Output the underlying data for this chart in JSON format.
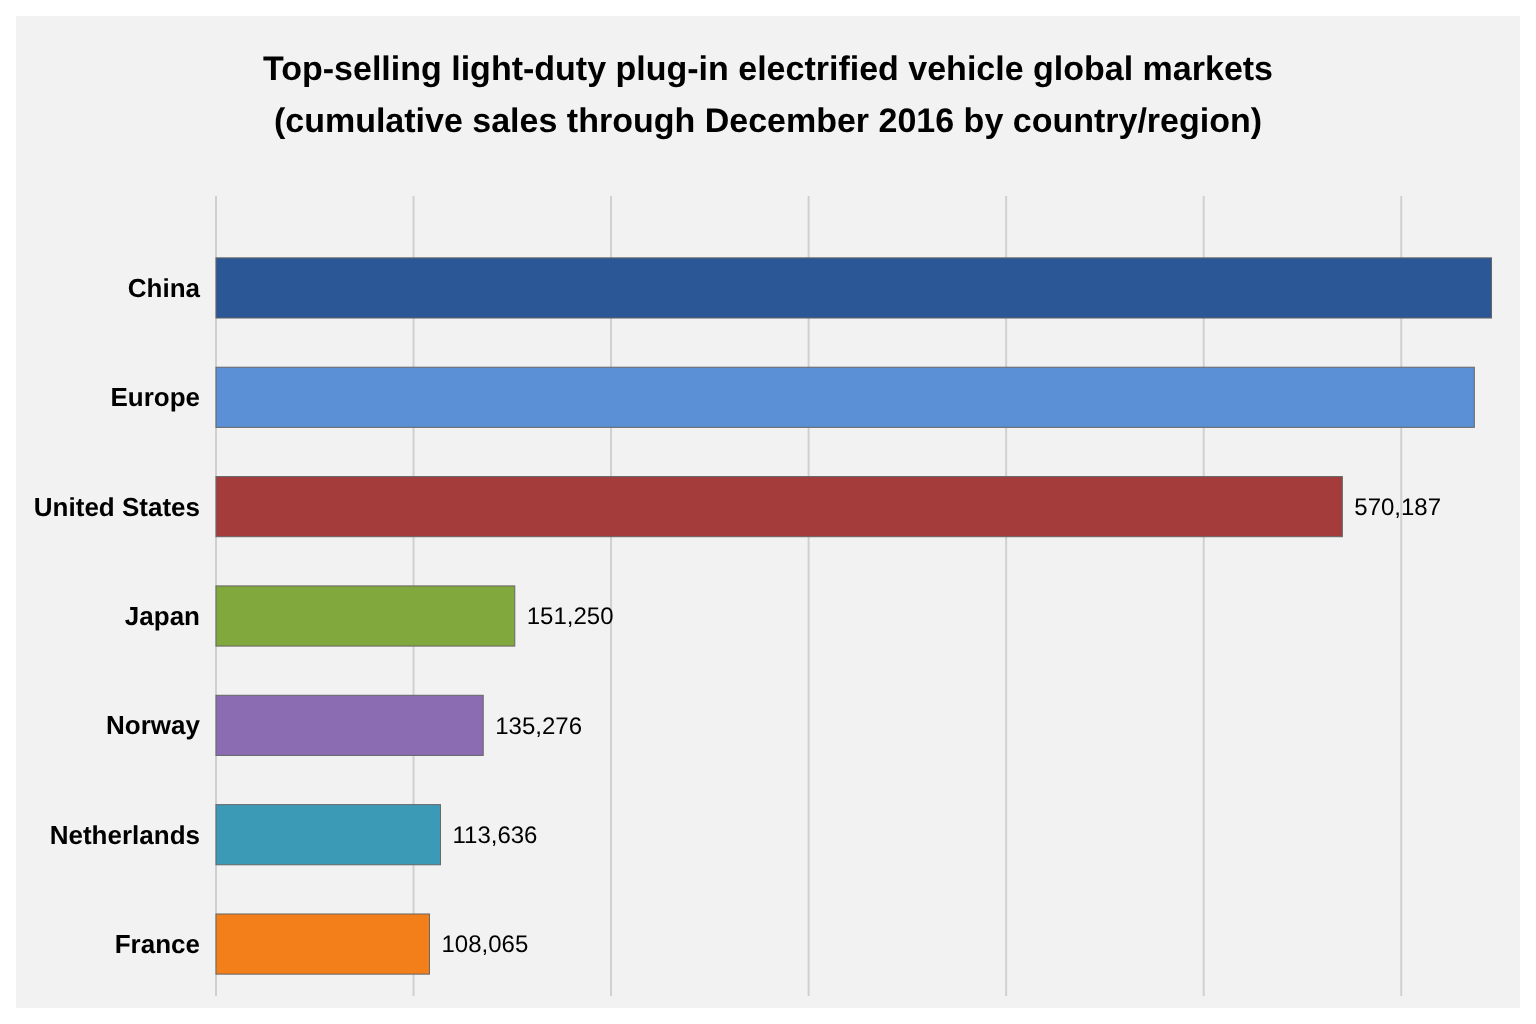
{
  "chart_data": {
    "type": "bar",
    "orientation": "horizontal",
    "title": "Top-selling light-duty plug-in electrified vehicle global markets",
    "subtitle": "(cumulative sales through December 2016 by country/region)",
    "categories": [
      "China",
      "Europe",
      "United States",
      "Japan",
      "Norway",
      "Netherlands",
      "France"
    ],
    "values": [
      645708,
      637000,
      570187,
      151250,
      135276,
      113636,
      108065
    ],
    "colors": [
      "#2b5797",
      "#5b8fd6",
      "#a53c3c",
      "#80a83c",
      "#8b6cb3",
      "#3b9bb6",
      "#f27f1a"
    ],
    "value_labels": [
      null,
      null,
      "570,187",
      "151,250",
      "135,276",
      "113,636",
      "108,065"
    ],
    "xlim": [
      0,
      650000
    ],
    "xticks": [
      {
        "value": 0,
        "label": null
      },
      {
        "value": 100000,
        "label": null
      },
      {
        "value": 200000,
        "label": null
      },
      {
        "value": 300000,
        "label": null
      },
      {
        "value": 400000,
        "label": null
      },
      {
        "value": 500000,
        "label": null
      },
      {
        "value": 600000,
        "label": null
      }
    ],
    "grid": "x"
  }
}
